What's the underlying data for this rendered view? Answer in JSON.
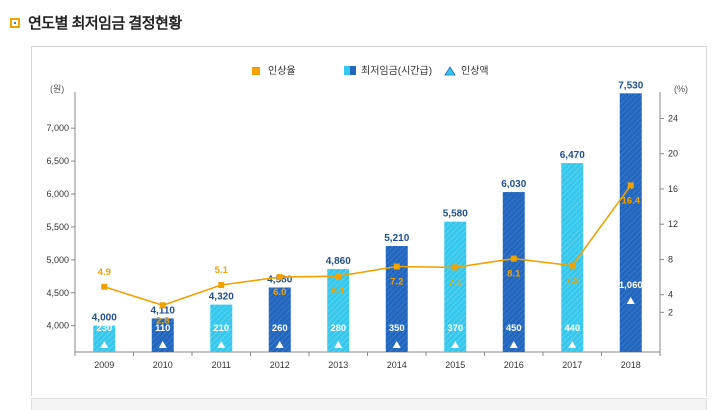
{
  "page": {
    "title": "연도별 최저임금 결정현황"
  },
  "colors": {
    "bar_light": "#36c8ec",
    "bar_dark": "#2266be",
    "rate_line": "#f2a200",
    "axis": "#888888"
  },
  "chart_data": {
    "type": "bar",
    "categories": [
      "2009",
      "2010",
      "2011",
      "2012",
      "2013",
      "2014",
      "2015",
      "2016",
      "2017",
      "2018"
    ],
    "y_left": {
      "unit": "(원)",
      "ticks": [
        "4,000",
        "4,500",
        "5,000",
        "5,500",
        "6,000",
        "6,500",
        "7,000"
      ],
      "tick_values": [
        4000,
        4500,
        5000,
        5500,
        6000,
        6500,
        7000
      ],
      "range": [
        3600,
        7550
      ]
    },
    "y_right": {
      "unit": "(%)",
      "ticks": [
        "2",
        "4",
        "8",
        "12",
        "16",
        "20",
        "24"
      ],
      "tick_values": [
        2,
        4,
        8,
        12,
        16,
        20,
        24
      ],
      "range": [
        -2.5,
        27
      ]
    },
    "legend": [
      {
        "name": "인상율",
        "marker": "square",
        "color": "#f2a200"
      },
      {
        "name": "최저임금(시간급)",
        "marker": "bar",
        "color": "#2266be"
      },
      {
        "name": "인상액",
        "marker": "triangle",
        "color": "#36c8ec"
      }
    ],
    "series": [
      {
        "name": "최저임금(시간급)",
        "values": [
          4000,
          4110,
          4320,
          4580,
          4860,
          5210,
          5580,
          6030,
          6470,
          7530
        ],
        "labels": [
          "4,000",
          "4,110",
          "4,320",
          "4,580",
          "4,860",
          "5,210",
          "5,580",
          "6,030",
          "6,470",
          "7,530"
        ],
        "styles": [
          "light",
          "dark",
          "light",
          "dark",
          "light",
          "dark",
          "light",
          "dark",
          "light",
          "dark"
        ]
      },
      {
        "name": "인상율",
        "values": [
          4.9,
          2.8,
          5.1,
          6.0,
          6.1,
          7.2,
          7.1,
          8.1,
          7.3,
          16.4
        ],
        "labels": [
          "4.9",
          "2.8",
          "5.1",
          "6.0",
          "6.1",
          "7.2",
          "7.1",
          "8.1",
          "7.3",
          "16.4"
        ]
      },
      {
        "name": "인상액",
        "values": [
          230,
          110,
          210,
          260,
          280,
          350,
          370,
          450,
          440,
          1060
        ],
        "labels": [
          "230",
          "110",
          "210",
          "260",
          "280",
          "350",
          "370",
          "450",
          "440",
          "1,060"
        ]
      }
    ]
  }
}
